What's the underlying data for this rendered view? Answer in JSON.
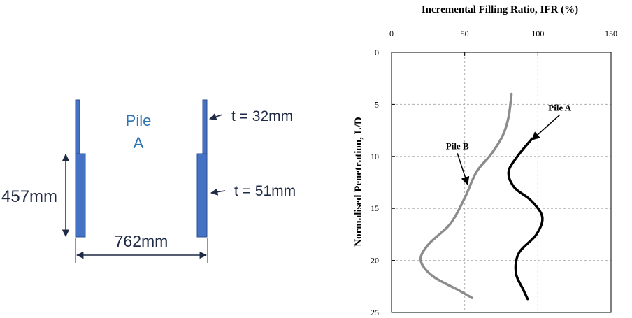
{
  "diagram": {
    "pile_label_line1": "Pile",
    "pile_label_line2": "A",
    "thickness_top": "t = 32mm",
    "thickness_bottom": "t = 51mm",
    "height_dim": "457mm",
    "width_dim": "762mm",
    "colors": {
      "pile": "#4472c4",
      "pile_edge": "#2f4f8f",
      "label": "#2e75b6",
      "dim_text": "#1f2a44"
    }
  },
  "chart_data": {
    "type": "line",
    "title": "Incremental Filling Ratio, IFR (%)",
    "xlabel": "Incremental Filling Ratio, IFR (%)",
    "ylabel": "Normalised Penetration, L/D",
    "xlim": [
      0,
      150
    ],
    "ylim": [
      25,
      0
    ],
    "x_ticks": [
      "0",
      "50",
      "100",
      "150"
    ],
    "y_ticks": [
      "0",
      "5",
      "10",
      "15",
      "20",
      "25"
    ],
    "x_axis_position": "top",
    "grid": true,
    "series": [
      {
        "name": "Pile A",
        "color": "#000000",
        "points": [
          {
            "x": 96,
            "y": 8.3
          },
          {
            "x": 86,
            "y": 10.0
          },
          {
            "x": 80,
            "y": 11.5
          },
          {
            "x": 84,
            "y": 13.0
          },
          {
            "x": 95,
            "y": 14.2
          },
          {
            "x": 103,
            "y": 15.8
          },
          {
            "x": 99,
            "y": 17.5
          },
          {
            "x": 87,
            "y": 19.3
          },
          {
            "x": 85,
            "y": 21.2
          },
          {
            "x": 90,
            "y": 22.8
          },
          {
            "x": 93,
            "y": 23.7
          }
        ]
      },
      {
        "name": "Pile B",
        "color": "#8c8c8c",
        "points": [
          {
            "x": 82,
            "y": 4.0
          },
          {
            "x": 80,
            "y": 6.2
          },
          {
            "x": 76,
            "y": 8.0
          },
          {
            "x": 68,
            "y": 9.8
          },
          {
            "x": 58,
            "y": 11.5
          },
          {
            "x": 50,
            "y": 14.0
          },
          {
            "x": 40,
            "y": 16.5
          },
          {
            "x": 25,
            "y": 18.5
          },
          {
            "x": 20,
            "y": 20.0
          },
          {
            "x": 28,
            "y": 21.5
          },
          {
            "x": 45,
            "y": 22.8
          },
          {
            "x": 55,
            "y": 23.6
          }
        ]
      }
    ],
    "annotations": [
      {
        "text": "Pile A",
        "tip": {
          "x": 96,
          "y": 8.4
        },
        "label_at": {
          "x": 115,
          "y": 5.6
        }
      },
      {
        "text": "Pile B",
        "tip": {
          "x": 52,
          "y": 12.7
        },
        "label_at": {
          "x": 45,
          "y": 9.3
        }
      }
    ]
  }
}
